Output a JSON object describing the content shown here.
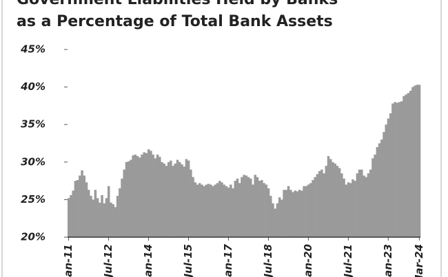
{
  "chart_data": {
    "type": "bar",
    "title_lines": [
      "Government Liabilities Held by Banks",
      "as a Percentage of Total Bank Assets"
    ],
    "categories": [
      "Jan-11",
      null,
      null,
      null,
      null,
      null,
      null,
      null,
      null,
      null,
      null,
      null,
      null,
      null,
      null,
      null,
      null,
      null,
      "Jul-12",
      null,
      null,
      null,
      null,
      null,
      null,
      null,
      null,
      null,
      null,
      null,
      null,
      null,
      null,
      null,
      null,
      null,
      "Jan-14",
      null,
      null,
      null,
      null,
      null,
      null,
      null,
      null,
      null,
      null,
      null,
      null,
      null,
      null,
      null,
      null,
      null,
      "Jul-15",
      null,
      null,
      null,
      null,
      null,
      null,
      null,
      null,
      null,
      null,
      null,
      null,
      null,
      null,
      null,
      null,
      null,
      "Jan-17",
      null,
      null,
      null,
      null,
      null,
      null,
      null,
      null,
      null,
      null,
      null,
      null,
      null,
      null,
      null,
      null,
      null,
      "Jul-18",
      null,
      null,
      null,
      null,
      null,
      null,
      null,
      null,
      null,
      null,
      null,
      null,
      null,
      null,
      null,
      null,
      null,
      "Jan-20",
      null,
      null,
      null,
      null,
      null,
      null,
      null,
      null,
      null,
      null,
      null,
      null,
      null,
      null,
      null,
      null,
      null,
      "Jul-21",
      null,
      null,
      null,
      null,
      null,
      null,
      null,
      null,
      null,
      null,
      null,
      null,
      null,
      null,
      null,
      null,
      null,
      "Jan-23",
      null,
      null,
      null,
      null,
      null,
      null,
      null,
      null,
      null,
      null,
      null,
      null,
      null,
      "Mar-24"
    ],
    "values": [
      25.2,
      25.6,
      26.2,
      27.5,
      27.6,
      28.2,
      28.9,
      28.2,
      27.3,
      26.3,
      25.5,
      25.0,
      26.3,
      25.2,
      24.6,
      25.6,
      24.5,
      25.2,
      26.8,
      24.6,
      24.4,
      24.0,
      25.5,
      26.5,
      27.8,
      29.0,
      30.0,
      30.1,
      30.3,
      30.9,
      31.0,
      30.8,
      30.6,
      31.0,
      31.3,
      31.2,
      31.7,
      31.5,
      31.0,
      30.5,
      31.0,
      30.7,
      30.0,
      29.8,
      29.5,
      30.0,
      30.2,
      29.5,
      29.8,
      30.3,
      30.0,
      29.7,
      29.4,
      30.4,
      30.2,
      29.0,
      28.0,
      27.3,
      27.0,
      27.2,
      27.0,
      26.8,
      27.0,
      27.1,
      27.0,
      26.8,
      27.0,
      27.2,
      27.5,
      27.3,
      27.0,
      26.8,
      26.6,
      27.0,
      26.5,
      27.5,
      27.8,
      27.2,
      28.0,
      28.3,
      28.2,
      28.0,
      27.8,
      27.0,
      28.3,
      28.0,
      27.5,
      27.6,
      27.2,
      27.0,
      26.5,
      25.5,
      24.5,
      23.8,
      24.5,
      25.3,
      25.0,
      26.3,
      26.3,
      26.8,
      26.3,
      26.0,
      26.2,
      26.1,
      26.3,
      26.2,
      26.8,
      26.8,
      27.0,
      27.2,
      27.6,
      28.0,
      28.4,
      28.8,
      29.0,
      28.5,
      29.5,
      30.8,
      30.4,
      30.0,
      29.8,
      29.5,
      29.2,
      28.5,
      27.8,
      27.0,
      27.3,
      27.2,
      27.7,
      27.5,
      28.5,
      29.0,
      29.0,
      28.2,
      28.0,
      28.5,
      29.0,
      30.5,
      31.0,
      32.0,
      32.5,
      33.0,
      34.0,
      35.0,
      35.8,
      36.5,
      37.8,
      38.0,
      37.9,
      38.0,
      38.1,
      38.8,
      39.0,
      39.2,
      39.5,
      40.0,
      40.2,
      40.3,
      40.3
    ],
    "color": "#9a9a9a",
    "ylim": [
      20,
      45
    ],
    "yticks": [
      {
        "value": 20,
        "label": "20%"
      },
      {
        "value": 25,
        "label": "25%"
      },
      {
        "value": 30,
        "label": "30%"
      },
      {
        "value": 35,
        "label": "35%"
      },
      {
        "value": 40,
        "label": "40%"
      },
      {
        "value": 45,
        "label": "45%"
      }
    ],
    "grid": false
  }
}
